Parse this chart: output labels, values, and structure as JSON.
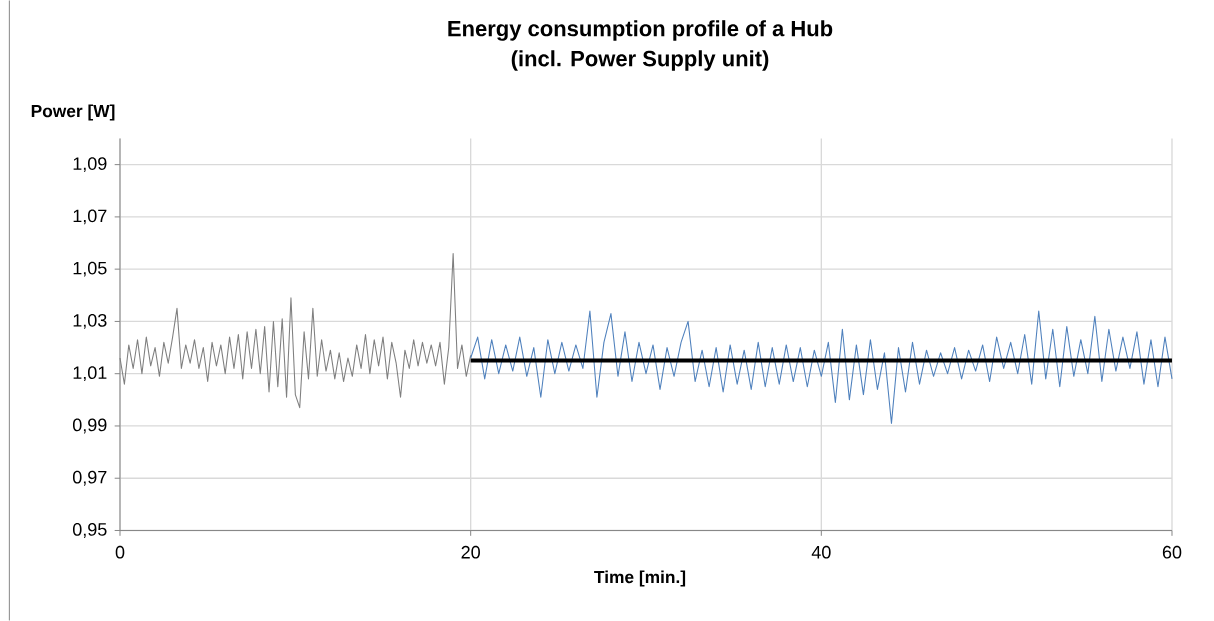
{
  "chart_data": {
    "type": "line",
    "title": "Energy consumption profile of a Hub",
    "subtitle": "(incl. Power  Supply unit)",
    "xlabel": "Time [min.]",
    "ylabel": "Power [W]",
    "xlim": [
      0,
      60
    ],
    "xticks": [
      0,
      20,
      40,
      60
    ],
    "ylim": [
      0.95,
      1.1
    ],
    "yticks": [
      {
        "value": 0.95,
        "label": "0,95"
      },
      {
        "value": 0.97,
        "label": "0,97"
      },
      {
        "value": 0.99,
        "label": "0,99"
      },
      {
        "value": 1.01,
        "label": "1,01"
      },
      {
        "value": 1.03,
        "label": "1,03"
      },
      {
        "value": 1.05,
        "label": "1,05"
      },
      {
        "value": 1.07,
        "label": "1,07"
      },
      {
        "value": 1.09,
        "label": "1,09"
      }
    ],
    "grid": true,
    "marker": "none",
    "line_style": "solid",
    "series": [
      {
        "color": "#7f7f7f",
        "x": [
          0,
          0.25,
          0.5,
          0.75,
          1.0,
          1.25,
          1.5,
          1.75,
          2.0,
          2.25,
          2.5,
          2.75,
          3.0,
          3.25,
          3.5,
          3.75,
          4.0,
          4.25,
          4.5,
          4.75,
          5.0,
          5.25,
          5.5,
          5.75,
          6.0,
          6.25,
          6.5,
          6.75,
          7.0,
          7.25,
          7.5,
          7.75,
          8.0,
          8.25,
          8.5,
          8.75,
          9.0,
          9.25,
          9.5,
          9.75,
          10.0,
          10.25,
          10.5,
          10.75,
          11.0,
          11.25,
          11.5,
          11.75,
          12.0,
          12.25,
          12.5,
          12.75,
          13.0,
          13.25,
          13.5,
          13.75,
          14.0,
          14.25,
          14.5,
          14.75,
          15.0,
          15.25,
          15.5,
          15.75,
          16.0,
          16.25,
          16.5,
          16.75,
          17.0,
          17.25,
          17.5,
          17.75,
          18.0,
          18.25,
          18.5,
          18.75,
          19.0,
          19.25,
          19.5,
          19.75,
          20.0
        ],
        "values": [
          1.016,
          1.006,
          1.021,
          1.012,
          1.023,
          1.01,
          1.024,
          1.013,
          1.02,
          1.009,
          1.022,
          1.014,
          1.024,
          1.035,
          1.012,
          1.021,
          1.014,
          1.023,
          1.012,
          1.02,
          1.007,
          1.022,
          1.013,
          1.021,
          1.01,
          1.024,
          1.012,
          1.025,
          1.008,
          1.026,
          1.012,
          1.027,
          1.01,
          1.028,
          1.003,
          1.03,
          1.005,
          1.031,
          1.001,
          1.039,
          1.002,
          0.997,
          1.026,
          1.008,
          1.035,
          1.009,
          1.023,
          1.011,
          1.019,
          1.008,
          1.018,
          1.007,
          1.016,
          1.009,
          1.021,
          1.012,
          1.025,
          1.01,
          1.023,
          1.013,
          1.024,
          1.008,
          1.022,
          1.014,
          1.001,
          1.019,
          1.012,
          1.023,
          1.013,
          1.022,
          1.014,
          1.021,
          1.013,
          1.022,
          1.006,
          1.02,
          1.056,
          1.012,
          1.021,
          1.009,
          1.017
        ]
      },
      {
        "color": "#4f81bd",
        "x": [
          20.0,
          20.4,
          20.8,
          21.2,
          21.6,
          22.0,
          22.4,
          22.8,
          23.2,
          23.6,
          24.0,
          24.4,
          24.8,
          25.2,
          25.6,
          26.0,
          26.4,
          26.8,
          27.2,
          27.6,
          28.0,
          28.4,
          28.8,
          29.2,
          29.6,
          30.0,
          30.4,
          30.8,
          31.2,
          31.6,
          32.0,
          32.4,
          32.8,
          33.2,
          33.6,
          34.0,
          34.4,
          34.8,
          35.2,
          35.6,
          36.0,
          36.4,
          36.8,
          37.2,
          37.6,
          38.0,
          38.4,
          38.8,
          39.2,
          39.6,
          40.0,
          40.4,
          40.8,
          41.2,
          41.6,
          42.0,
          42.4,
          42.8,
          43.2,
          43.6,
          44.0,
          44.4,
          44.8,
          45.2,
          45.6,
          46.0,
          46.4,
          46.8,
          47.2,
          47.6,
          48.0,
          48.4,
          48.8,
          49.2,
          49.6,
          50.0,
          50.4,
          50.8,
          51.2,
          51.6,
          52.0,
          52.4,
          52.8,
          53.2,
          53.6,
          54.0,
          54.4,
          54.8,
          55.2,
          55.6,
          56.0,
          56.4,
          56.8,
          57.2,
          57.6,
          58.0,
          58.4,
          58.8,
          59.2,
          59.6,
          60.0
        ],
        "values": [
          1.016,
          1.024,
          1.008,
          1.023,
          1.01,
          1.021,
          1.011,
          1.024,
          1.009,
          1.02,
          1.001,
          1.023,
          1.01,
          1.022,
          1.011,
          1.021,
          1.012,
          1.034,
          1.001,
          1.022,
          1.033,
          1.009,
          1.026,
          1.007,
          1.022,
          1.01,
          1.021,
          1.004,
          1.02,
          1.009,
          1.022,
          1.03,
          1.007,
          1.019,
          1.005,
          1.02,
          1.003,
          1.021,
          1.006,
          1.019,
          1.004,
          1.022,
          1.005,
          1.02,
          1.006,
          1.021,
          1.007,
          1.02,
          1.005,
          1.019,
          1.009,
          1.022,
          0.999,
          1.027,
          1.0,
          1.021,
          1.002,
          1.023,
          1.004,
          1.018,
          0.991,
          1.02,
          1.003,
          1.022,
          1.006,
          1.019,
          1.009,
          1.018,
          1.01,
          1.02,
          1.008,
          1.019,
          1.011,
          1.021,
          1.007,
          1.024,
          1.012,
          1.022,
          1.01,
          1.025,
          1.006,
          1.034,
          1.008,
          1.027,
          1.005,
          1.028,
          1.009,
          1.023,
          1.01,
          1.032,
          1.007,
          1.027,
          1.011,
          1.024,
          1.012,
          1.026,
          1.006,
          1.023,
          1.005,
          1.024,
          1.008
        ]
      },
      {
        "color": "#000000",
        "x": [
          20,
          60
        ],
        "values": [
          1.015,
          1.015
        ]
      }
    ]
  }
}
